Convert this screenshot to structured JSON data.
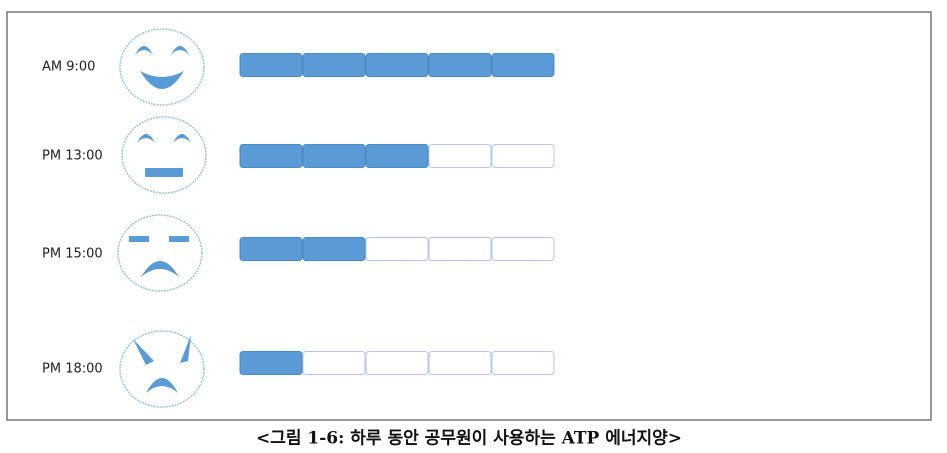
{
  "rows": [
    {
      "label": "AM 9:00",
      "filled": 5
    },
    {
      "label": "PM 13:00",
      "filled": 3
    },
    {
      "label": "PM 15:00",
      "filled": 2
    },
    {
      "label": "PM 18:00",
      "filled": 1
    }
  ],
  "segments": 5,
  "caption": "<그림 1-6: 하루 동안 공무원이 사용하는 ATP 에너지양>"
}
